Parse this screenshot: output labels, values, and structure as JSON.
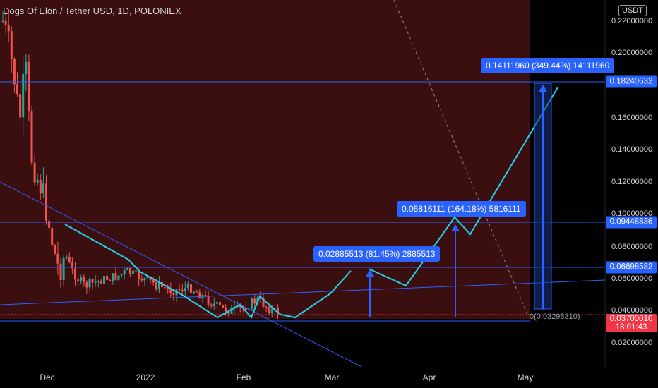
{
  "header": {
    "title": "Dogs Of Elon / Tether USD, 1D, POLONIEX",
    "currency": "USDT"
  },
  "colors": {
    "up": "#26a69a",
    "down": "#ef5350",
    "line": "#2962ff",
    "projection": "#22d3ee",
    "bg_shade": "#3d0e0e"
  },
  "price_axis": [
    "0.22000000",
    "0.20000000",
    "0.18000000",
    "0.16000000",
    "0.14000000",
    "0.12000000",
    "0.10000000",
    "0.08000000",
    "0.06000000",
    "0.04000000",
    "0.02000000"
  ],
  "time_axis": [
    "Dec",
    "2022",
    "Feb",
    "Mar",
    "Apr",
    "May"
  ],
  "price_labels": {
    "level_1": "0.18240632",
    "level_2": "0.09448836",
    "level_3": "0.06698582",
    "last_price": "0.03700010",
    "countdown": "18:01:43"
  },
  "callouts": {
    "target_1": "0.02885513 (81.45%) 2885513",
    "target_2": "0.05816111 (164.18%) 5816111",
    "target_3": "0.14111960 (349.44%) 14111960"
  },
  "base_label": "0(0.03298310)"
}
